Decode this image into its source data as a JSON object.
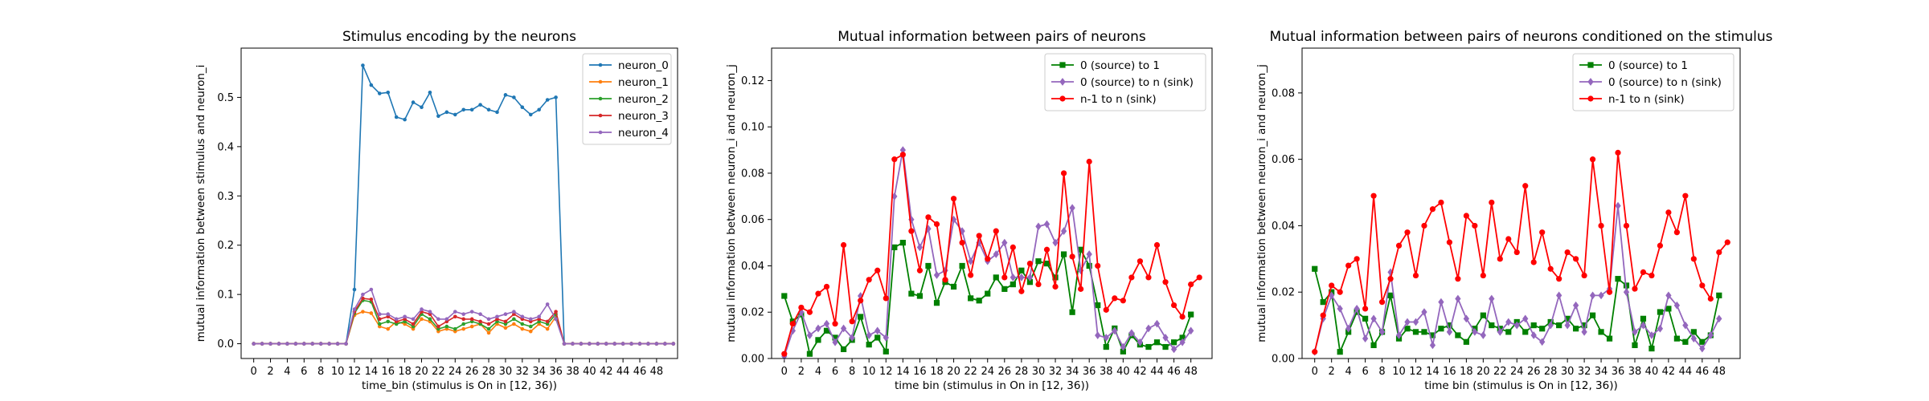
{
  "charts": [
    {
      "type": "line",
      "title": "Stimulus encoding by the neurons",
      "xlabel": "time_bin (stimulus is On in [12, 36))",
      "ylabel": "mutual information between stimulus and neuron_i",
      "xlim": [
        -1.5,
        50.5
      ],
      "ylim": [
        -0.03,
        0.6
      ],
      "xticks": [
        0,
        2,
        4,
        6,
        8,
        10,
        12,
        14,
        16,
        18,
        20,
        22,
        24,
        26,
        28,
        30,
        32,
        34,
        36,
        38,
        40,
        42,
        44,
        46,
        48
      ],
      "yticks": [
        0.0,
        0.1,
        0.2,
        0.3,
        0.4,
        0.5
      ],
      "ytick_labels": [
        "0.0",
        "0.1",
        "0.2",
        "0.3",
        "0.4",
        "0.5"
      ],
      "legend_position": "top-right",
      "series": [
        {
          "name": "neuron_0",
          "color": "#1f77b4",
          "marker": "dot",
          "y": [
            0,
            0,
            0,
            0,
            0,
            0,
            0,
            0,
            0,
            0,
            0,
            0,
            0.11,
            0.565,
            0.525,
            0.508,
            0.51,
            0.46,
            0.455,
            0.49,
            0.48,
            0.51,
            0.462,
            0.47,
            0.465,
            0.475,
            0.475,
            0.485,
            0.475,
            0.47,
            0.505,
            0.5,
            0.48,
            0.465,
            0.475,
            0.495,
            0.5,
            0,
            0,
            0,
            0,
            0,
            0,
            0,
            0,
            0,
            0,
            0,
            0,
            0,
            0
          ]
        },
        {
          "name": "neuron_1",
          "color": "#ff7f0e",
          "marker": "dot",
          "y": [
            0,
            0,
            0,
            0,
            0,
            0,
            0,
            0,
            0,
            0,
            0,
            0,
            0.058,
            0.065,
            0.062,
            0.035,
            0.03,
            0.045,
            0.04,
            0.03,
            0.05,
            0.045,
            0.025,
            0.03,
            0.025,
            0.03,
            0.035,
            0.04,
            0.022,
            0.04,
            0.032,
            0.04,
            0.03,
            0.025,
            0.04,
            0.03,
            0.055,
            0,
            0,
            0,
            0,
            0,
            0,
            0,
            0,
            0,
            0,
            0,
            0,
            0,
            0
          ]
        },
        {
          "name": "neuron_2",
          "color": "#2ca02c",
          "marker": "dot",
          "y": [
            0,
            0,
            0,
            0,
            0,
            0,
            0,
            0,
            0,
            0,
            0,
            0,
            0.062,
            0.088,
            0.085,
            0.04,
            0.045,
            0.04,
            0.045,
            0.035,
            0.06,
            0.05,
            0.03,
            0.035,
            0.03,
            0.04,
            0.045,
            0.04,
            0.03,
            0.045,
            0.04,
            0.05,
            0.04,
            0.035,
            0.045,
            0.04,
            0.06,
            0,
            0,
            0,
            0,
            0,
            0,
            0,
            0,
            0,
            0,
            0,
            0,
            0,
            0
          ]
        },
        {
          "name": "neuron_3",
          "color": "#d62728",
          "marker": "dot",
          "y": [
            0,
            0,
            0,
            0,
            0,
            0,
            0,
            0,
            0,
            0,
            0,
            0,
            0.065,
            0.092,
            0.09,
            0.05,
            0.055,
            0.045,
            0.05,
            0.04,
            0.065,
            0.06,
            0.035,
            0.045,
            0.055,
            0.05,
            0.05,
            0.045,
            0.04,
            0.05,
            0.045,
            0.06,
            0.05,
            0.045,
            0.05,
            0.045,
            0.065,
            0,
            0,
            0,
            0,
            0,
            0,
            0,
            0,
            0,
            0,
            0,
            0,
            0,
            0
          ]
        },
        {
          "name": "neuron_4",
          "color": "#9467bd",
          "marker": "dot",
          "y": [
            0,
            0,
            0,
            0,
            0,
            0,
            0,
            0,
            0,
            0,
            0,
            0,
            0.07,
            0.1,
            0.11,
            0.06,
            0.06,
            0.05,
            0.055,
            0.05,
            0.07,
            0.065,
            0.05,
            0.05,
            0.065,
            0.06,
            0.065,
            0.06,
            0.05,
            0.055,
            0.06,
            0.065,
            0.055,
            0.05,
            0.055,
            0.08,
            0.05,
            0,
            0,
            0,
            0,
            0,
            0,
            0,
            0,
            0,
            0,
            0,
            0,
            0,
            0
          ]
        }
      ]
    },
    {
      "type": "line",
      "title": "Mutual information between pairs of neurons",
      "xlabel": "time bin (stimulus in On in [12, 36))",
      "ylabel": "mutual information between neuron_i and neuron_j",
      "xlim": [
        -1.5,
        50.5
      ],
      "ylim": [
        0.0,
        0.134
      ],
      "xticks": [
        0,
        2,
        4,
        6,
        8,
        10,
        12,
        14,
        16,
        18,
        20,
        22,
        24,
        26,
        28,
        30,
        32,
        34,
        36,
        38,
        40,
        42,
        44,
        46,
        48
      ],
      "yticks": [
        0.0,
        0.02,
        0.04,
        0.06,
        0.08,
        0.1,
        0.12
      ],
      "ytick_labels": [
        "0.00",
        "0.02",
        "0.04",
        "0.06",
        "0.08",
        "0.10",
        "0.12"
      ],
      "legend_position": "top-right",
      "series": [
        {
          "name": "0 (source) to 1",
          "color": "#008000",
          "marker": "square",
          "y": [
            0.027,
            0.016,
            0.019,
            0.002,
            0.008,
            0.012,
            0.009,
            0.004,
            0.008,
            0.018,
            0.006,
            0.009,
            0.003,
            0.048,
            0.05,
            0.028,
            0.027,
            0.04,
            0.024,
            0.033,
            0.031,
            0.04,
            0.026,
            0.025,
            0.028,
            0.035,
            0.03,
            0.032,
            0.038,
            0.033,
            0.042,
            0.041,
            0.035,
            0.045,
            0.02,
            0.047,
            0.04,
            0.023,
            0.005,
            0.013,
            0.003,
            0.01,
            0.006,
            0.005,
            0.007,
            0.005,
            0.007,
            0.009,
            0.019
          ]
        },
        {
          "name": "0 (source) to n (sink)",
          "color": "#9467bd",
          "marker": "diamond",
          "y": [
            0.001,
            0.012,
            0.02,
            0.01,
            0.013,
            0.015,
            0.007,
            0.013,
            0.009,
            0.027,
            0.01,
            0.012,
            0.009,
            0.07,
            0.09,
            0.06,
            0.048,
            0.056,
            0.036,
            0.038,
            0.06,
            0.055,
            0.042,
            0.05,
            0.042,
            0.045,
            0.05,
            0.035,
            0.035,
            0.035,
            0.057,
            0.058,
            0.05,
            0.055,
            0.065,
            0.038,
            0.045,
            0.01,
            0.009,
            0.012,
            0.005,
            0.011,
            0.007,
            0.013,
            0.015,
            0.009,
            0.004,
            0.007,
            0.012
          ]
        },
        {
          "name": "n-1 to n (sink)",
          "color": "#ff0000",
          "marker": "dot",
          "y": [
            0.002,
            0.015,
            0.022,
            0.02,
            0.028,
            0.031,
            0.015,
            0.049,
            0.016,
            0.025,
            0.034,
            0.038,
            0.026,
            0.086,
            0.088,
            0.055,
            0.038,
            0.061,
            0.058,
            0.034,
            0.069,
            0.05,
            0.036,
            0.053,
            0.043,
            0.055,
            0.035,
            0.048,
            0.029,
            0.041,
            0.032,
            0.047,
            0.031,
            0.08,
            0.044,
            0.03,
            0.085,
            0.04,
            0.021,
            0.026,
            0.025,
            0.035,
            0.042,
            0.035,
            0.049,
            0.033,
            0.023,
            0.018,
            0.032,
            0.035
          ]
        }
      ]
    },
    {
      "type": "line",
      "title": "Mutual information between pairs of neurons conditioned on the stimulus",
      "xlabel": "time bin (stimulus is On in [12, 36))",
      "ylabel": "mutual information between neuron_i and neuron_j",
      "xlim": [
        -1.5,
        50.5
      ],
      "ylim": [
        0.0,
        0.0935
      ],
      "xticks": [
        0,
        2,
        4,
        6,
        8,
        10,
        12,
        14,
        16,
        18,
        20,
        22,
        24,
        26,
        28,
        30,
        32,
        34,
        36,
        38,
        40,
        42,
        44,
        46,
        48
      ],
      "yticks": [
        0.0,
        0.02,
        0.04,
        0.06,
        0.08
      ],
      "ytick_labels": [
        "0.00",
        "0.02",
        "0.04",
        "0.06",
        "0.08"
      ],
      "legend_position": "top-right",
      "series": [
        {
          "name": "0 (source) to 1",
          "color": "#008000",
          "marker": "square",
          "y": [
            0.027,
            0.017,
            0.02,
            0.002,
            0.008,
            0.014,
            0.012,
            0.004,
            0.008,
            0.019,
            0.006,
            0.009,
            0.008,
            0.008,
            0.007,
            0.009,
            0.01,
            0.007,
            0.005,
            0.009,
            0.013,
            0.01,
            0.009,
            0.008,
            0.011,
            0.008,
            0.01,
            0.009,
            0.011,
            0.01,
            0.012,
            0.009,
            0.01,
            0.013,
            0.008,
            0.006,
            0.024,
            0.022,
            0.004,
            0.012,
            0.003,
            0.014,
            0.015,
            0.006,
            0.005,
            0.008,
            0.005,
            0.007,
            0.019
          ]
        },
        {
          "name": "0 (source) to n (sink)",
          "color": "#9467bd",
          "marker": "diamond",
          "y": [
            0.002,
            0.012,
            0.019,
            0.015,
            0.009,
            0.015,
            0.006,
            0.012,
            0.008,
            0.026,
            0.007,
            0.011,
            0.011,
            0.014,
            0.004,
            0.017,
            0.008,
            0.018,
            0.012,
            0.008,
            0.007,
            0.018,
            0.008,
            0.011,
            0.01,
            0.012,
            0.007,
            0.005,
            0.01,
            0.019,
            0.01,
            0.016,
            0.008,
            0.019,
            0.019,
            0.021,
            0.046,
            0.02,
            0.008,
            0.01,
            0.007,
            0.009,
            0.019,
            0.016,
            0.01,
            0.006,
            0.003,
            0.007,
            0.012
          ]
        },
        {
          "name": "n-1 to n (sink)",
          "color": "#ff0000",
          "marker": "dot",
          "y": [
            0.002,
            0.013,
            0.022,
            0.02,
            0.028,
            0.03,
            0.015,
            0.049,
            0.017,
            0.024,
            0.034,
            0.038,
            0.025,
            0.04,
            0.045,
            0.047,
            0.035,
            0.024,
            0.043,
            0.04,
            0.025,
            0.047,
            0.03,
            0.036,
            0.032,
            0.052,
            0.029,
            0.038,
            0.027,
            0.024,
            0.032,
            0.03,
            0.025,
            0.06,
            0.04,
            0.02,
            0.062,
            0.04,
            0.021,
            0.026,
            0.025,
            0.034,
            0.044,
            0.038,
            0.049,
            0.03,
            0.022,
            0.018,
            0.032,
            0.035
          ]
        }
      ]
    }
  ]
}
